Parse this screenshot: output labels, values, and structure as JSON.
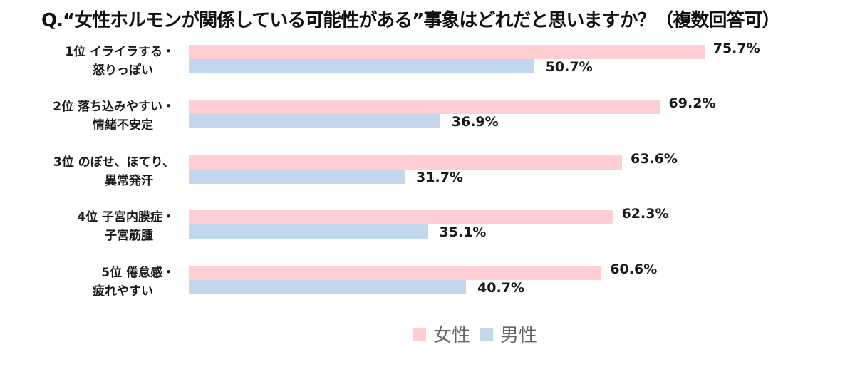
{
  "title": "Q.“女性ホルモンが関係している可能性がある”事象はどれだと思いますか？（複数回答可）",
  "colors": {
    "female": "#ffcdd2",
    "male": "#c2d6ec"
  },
  "legend": {
    "female": "女性",
    "male": "男性"
  },
  "rows": [
    {
      "line1": "1位 イライラする・",
      "line2": "怒りっぽい",
      "female": "75.7%",
      "male": "50.7%"
    },
    {
      "line1": "2位 落ち込みやすい・",
      "line2": "情緒不安定",
      "female": "69.2%",
      "male": "36.9%"
    },
    {
      "line1": "3位 のぼせ、ほてり、",
      "line2": "異常発汗",
      "female": "63.6%",
      "male": "31.7%"
    },
    {
      "line1": "4位 子宮内膜症・",
      "line2": "子宮筋腫",
      "female": "62.3%",
      "male": "35.1%"
    },
    {
      "line1": "5位 倦怠感・",
      "line2": "疲れやすい",
      "female": "60.6%",
      "male": "40.7%"
    }
  ],
  "chart_data": {
    "type": "bar",
    "orientation": "horizontal",
    "title": "Q.“女性ホルモンが関係している可能性がある”事象はどれだと思いますか？（複数回答可）",
    "categories": [
      "1位 イライラする・怒りっぽい",
      "2位 落ち込みやすい・情緒不安定",
      "3位 のぼせ、ほてり、異常発汗",
      "4位 子宮内膜症・子宮筋腫",
      "5位 倦怠感・疲れやすい"
    ],
    "series": [
      {
        "name": "女性",
        "color": "#ffcdd2",
        "values": [
          75.7,
          69.2,
          63.6,
          62.3,
          60.6
        ]
      },
      {
        "name": "男性",
        "color": "#c2d6ec",
        "values": [
          50.7,
          36.9,
          31.7,
          35.1,
          40.7
        ]
      }
    ],
    "xlabel": "",
    "ylabel": "",
    "unit": "%",
    "grid": false,
    "axis_visible": false,
    "data_labels": true,
    "legend_position": "bottom"
  }
}
